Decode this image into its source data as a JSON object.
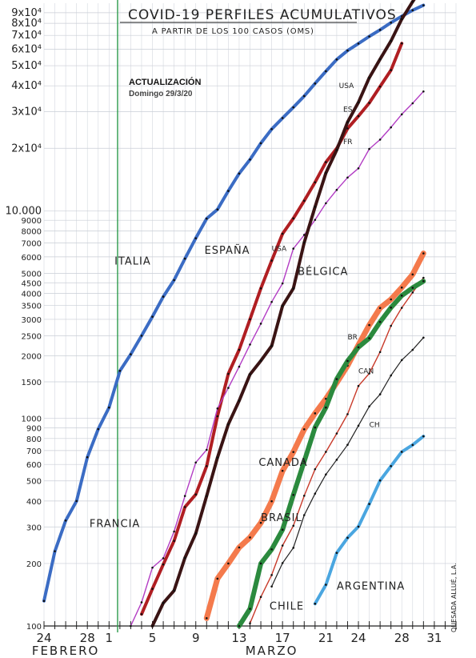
{
  "chart_data": {
    "type": "line",
    "title": "COVID-19 PERFILES ACUMULATIVOS",
    "subtitle": "A PARTIR DE LOS 100 CASOS (OMS)",
    "update_line1": "ACTUALIZACIÓN",
    "update_line2": "Domingo 29/3/20",
    "author": "QUESADA ALLUÉ, L.A.",
    "y_scale": "log",
    "ylim": [
      100,
      100000
    ],
    "xlim": [
      24,
      62
    ],
    "grid": true,
    "x_ticks": [
      {
        "v": 24,
        "label": "24"
      },
      {
        "v": 28,
        "label": "28"
      },
      {
        "v": 30,
        "label": "1"
      },
      {
        "v": 34,
        "label": "5"
      },
      {
        "v": 38,
        "label": "9"
      },
      {
        "v": 42,
        "label": "13"
      },
      {
        "v": 46,
        "label": "17"
      },
      {
        "v": 50,
        "label": "21"
      },
      {
        "v": 53,
        "label": "24"
      },
      {
        "v": 57,
        "label": "28"
      },
      {
        "v": 60,
        "label": "31"
      }
    ],
    "x_month_labels": [
      {
        "v": 26,
        "label": "FEBRERO"
      },
      {
        "v": 45,
        "label": "MARZO"
      }
    ],
    "y_ticks": [
      {
        "v": 100,
        "label": "100"
      },
      {
        "v": 200,
        "label": "200"
      },
      {
        "v": 300,
        "label": "300"
      },
      {
        "v": 400,
        "label": "400"
      },
      {
        "v": 500,
        "label": "500"
      },
      {
        "v": 600,
        "label": "600"
      },
      {
        "v": 700,
        "label": "700"
      },
      {
        "v": 800,
        "label": "800"
      },
      {
        "v": 900,
        "label": "900"
      },
      {
        "v": 1000,
        "label": "1000"
      },
      {
        "v": 1500,
        "label": "1500"
      },
      {
        "v": 2000,
        "label": "2000"
      },
      {
        "v": 2500,
        "label": "2500"
      },
      {
        "v": 3000,
        "label": "3000"
      },
      {
        "v": 3500,
        "label": "3500"
      },
      {
        "v": 4000,
        "label": "4000"
      },
      {
        "v": 4500,
        "label": "4500"
      },
      {
        "v": 5000,
        "label": "5000"
      },
      {
        "v": 6000,
        "label": "6000"
      },
      {
        "v": 7000,
        "label": "7000"
      },
      {
        "v": 8000,
        "label": "8000"
      },
      {
        "v": 9000,
        "label": "9000"
      },
      {
        "v": 10000,
        "label": "10.000"
      },
      {
        "v": 20000,
        "label": "2x10⁴"
      },
      {
        "v": 30000,
        "label": "3x10⁴"
      },
      {
        "v": 40000,
        "label": "4x10⁴"
      },
      {
        "v": 50000,
        "label": "5x10⁴"
      },
      {
        "v": 60000,
        "label": "6x10⁴"
      },
      {
        "v": 70000,
        "label": "7x10⁴"
      },
      {
        "v": 80000,
        "label": "8x10⁴"
      },
      {
        "v": 90000,
        "label": "9x10⁴"
      }
    ],
    "series": [
      {
        "name": "ITALIA",
        "color": "#3b6cc4",
        "width": 4,
        "x": [
          24,
          25,
          26,
          27,
          28,
          29,
          30,
          31,
          32,
          33,
          34,
          35,
          36,
          37,
          38,
          39,
          40,
          41,
          42,
          43,
          44,
          45,
          46,
          47,
          48,
          49,
          50,
          51,
          52,
          53,
          54,
          55,
          56,
          57,
          58,
          59
        ],
        "values": [
          132,
          229,
          322,
          400,
          650,
          888,
          1128,
          1694,
          2036,
          2502,
          3089,
          3858,
          4636,
          5883,
          7375,
          9172,
          10149,
          12462,
          15113,
          17660,
          21157,
          24747,
          27980,
          31506,
          35713,
          41035,
          47021,
          53578,
          59138,
          63927,
          69176,
          74386,
          80589,
          86498,
          92472,
          97689
        ]
      },
      {
        "name": "ESPAÑA",
        "color": "#b01e22",
        "width": 4,
        "x": [
          33,
          34,
          35,
          36,
          37,
          38,
          39,
          40,
          41,
          42,
          43,
          44,
          45,
          46,
          47,
          48,
          49,
          50,
          51,
          52,
          53,
          54,
          55,
          56,
          57
        ],
        "values": [
          114,
          151,
          198,
          257,
          374,
          430,
          589,
          1024,
          1639,
          2140,
          3004,
          4231,
          5753,
          7753,
          9191,
          11178,
          13716,
          17147,
          19980,
          24926,
          28572,
          33089,
          39673,
          47610,
          64059
        ]
      },
      {
        "name": "FRANCIA",
        "color": "#b23cc4",
        "width": 1.4,
        "x": [
          32,
          33,
          34,
          35,
          36,
          37,
          38,
          39,
          40,
          41,
          42,
          43,
          44,
          45,
          46,
          47,
          48,
          49,
          50,
          51,
          52,
          53,
          54,
          55,
          56,
          57,
          58,
          59
        ],
        "values": [
          100,
          130,
          191,
          212,
          285,
          423,
          613,
          706,
          1116,
          1402,
          1774,
          2269,
          2860,
          3640,
          4469,
          6573,
          7652,
          9043,
          10871,
          12612,
          14459,
          16018,
          19856,
          22025,
          25233,
          29155,
          32964,
          37575
        ]
      },
      {
        "name": "USA",
        "color": "#3a1414",
        "width": 4,
        "x": [
          34,
          35,
          36,
          37,
          38,
          39,
          40,
          41,
          42,
          43,
          44,
          45,
          46,
          47,
          48,
          49,
          50,
          51,
          52,
          53,
          54,
          55,
          56,
          57,
          58,
          59
        ],
        "values": [
          100,
          129,
          148,
          213,
          279,
          423,
          647,
          937,
          1215,
          1629,
          1896,
          2234,
          3487,
          4226,
          7038,
          10442,
          15219,
          19624,
          26747,
          33276,
          43734,
          53740,
          65778,
          83836,
          101657,
          121478
        ]
      },
      {
        "name": "BÉLGICA",
        "color": "#f47a4c",
        "width": 7,
        "x": [
          39,
          40,
          41,
          42,
          43,
          44,
          45,
          46,
          47,
          48,
          49,
          50,
          51,
          52,
          53,
          54,
          55,
          56,
          57,
          58,
          59
        ],
        "values": [
          109,
          169,
          200,
          239,
          267,
          314,
          399,
          559,
          689,
          886,
          1058,
          1243,
          1486,
          1795,
          2257,
          2815,
          3401,
          3743,
          4269,
          4937,
          6235
        ]
      },
      {
        "name": "CANADA",
        "color": "#c83a2a",
        "width": 1.4,
        "x": [
          43,
          44,
          45,
          46,
          47,
          48,
          49,
          50,
          51,
          52,
          53,
          54,
          55,
          56,
          57,
          58,
          59
        ],
        "values": [
          103,
          138,
          176,
          244,
          304,
          424,
          569,
          690,
          846,
          1048,
          1432,
          1646,
          2088,
          2792,
          3409,
          4043,
          4757
        ]
      },
      {
        "name": "BRASIL",
        "color": "#2b8a3e",
        "width": 6,
        "x": [
          42,
          43,
          44,
          45,
          46,
          47,
          48,
          49,
          50,
          51,
          52,
          53,
          54,
          55,
          56,
          57,
          58,
          59
        ],
        "values": [
          100,
          121,
          200,
          234,
          291,
          428,
          621,
          904,
          1128,
          1546,
          1891,
          2201,
          2433,
          2915,
          3417,
          3904,
          4256,
          4579
        ]
      },
      {
        "name": "CHILE",
        "color": "#222222",
        "width": 1.2,
        "x": [
          45,
          46,
          47,
          48,
          49,
          50,
          51,
          52,
          53,
          54,
          55,
          56,
          57,
          58,
          59
        ],
        "values": [
          155,
          201,
          238,
          342,
          434,
          537,
          632,
          746,
          922,
          1142,
          1306,
          1610,
          1909,
          2139,
          2449
        ]
      },
      {
        "name": "ARGENTINA",
        "color": "#4aa6e0",
        "width": 4,
        "x": [
          49,
          50,
          51,
          52,
          53,
          54,
          55,
          56,
          57,
          58,
          59
        ],
        "values": [
          128,
          158,
          225,
          266,
          301,
          387,
          502,
          589,
          690,
          745,
          820
        ]
      }
    ],
    "series_labels": [
      {
        "text": "ITALIA",
        "x": 30.5,
        "y": 5500
      },
      {
        "text": "ESPAÑA",
        "x": 38.8,
        "y": 6200
      },
      {
        "text": "FRANCIA",
        "x": 28.2,
        "y": 300
      },
      {
        "text": "USA",
        "x": 45.0,
        "y": 6400
      },
      {
        "text": "BÉLGICA",
        "x": 47.4,
        "y": 4900
      },
      {
        "text": "CANADA",
        "x": 43.8,
        "y": 590
      },
      {
        "text": "BRASIL",
        "x": 44.0,
        "y": 320
      },
      {
        "text": "CHILE",
        "x": 44.8,
        "y": 120
      },
      {
        "text": "ARGENTINA",
        "x": 51.0,
        "y": 150
      },
      {
        "text": "USA",
        "x": 51.2,
        "y": 39000
      },
      {
        "text": "ES",
        "x": 51.6,
        "y": 30000
      },
      {
        "text": "FR",
        "x": 51.6,
        "y": 21000
      },
      {
        "text": "BR",
        "x": 52.0,
        "y": 2400
      },
      {
        "text": "CAN",
        "x": 53.0,
        "y": 1650
      },
      {
        "text": "CH",
        "x": 54.0,
        "y": 910
      }
    ]
  }
}
